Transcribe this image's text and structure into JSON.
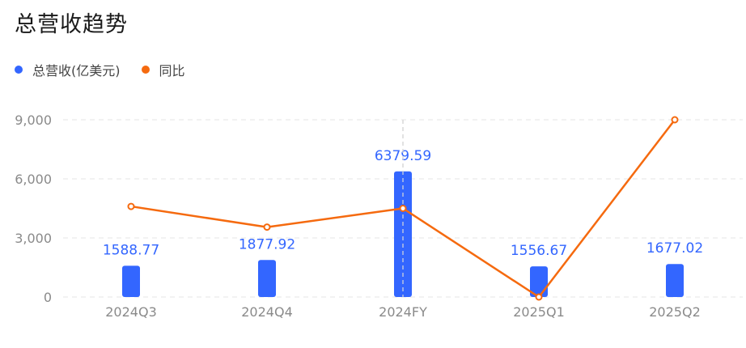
{
  "title": "总营收趋势",
  "colors": {
    "revenue": "#3366ff",
    "yoy": "#f56a0f",
    "grid": "#e6e6e6",
    "axis_text": "#8a8a8a"
  },
  "legend": [
    {
      "label": "总营收(亿美元)",
      "color": "#3366ff"
    },
    {
      "label": "同比",
      "color": "#f56a0f"
    }
  ],
  "chart_data": {
    "type": "bar",
    "categories": [
      "2024Q3",
      "2024Q4",
      "2024FY",
      "2025Q1",
      "2025Q2"
    ],
    "series": [
      {
        "name": "总营收(亿美元)",
        "type": "bar",
        "values": [
          1588.77,
          1877.92,
          6379.59,
          1556.67,
          1677.02
        ]
      },
      {
        "name": "同比",
        "type": "line",
        "values": [
          4600,
          3550,
          4500,
          0,
          9000
        ]
      }
    ],
    "ylim": [
      0,
      9000
    ],
    "yticks": [
      "0",
      "3,000",
      "6,000",
      "9,000"
    ],
    "ytick_values": [
      0,
      3000,
      6000,
      9000
    ],
    "grid": true,
    "legend_position": "top-left",
    "highlight_category": "2024FY"
  }
}
